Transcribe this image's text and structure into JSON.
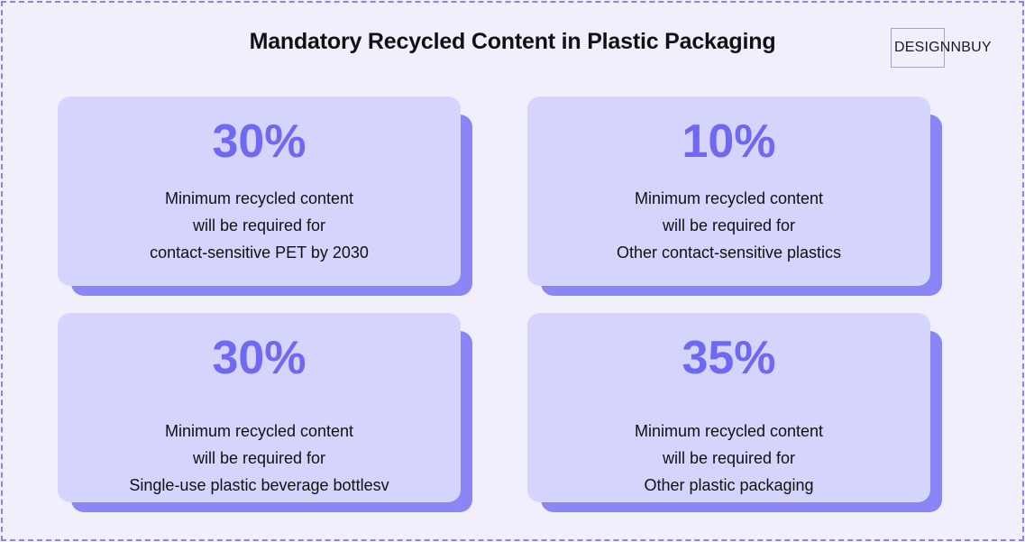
{
  "title": "Mandatory Recycled Content in Plastic Packaging",
  "logo": {
    "text": "DESIGNNBUY"
  },
  "cards": [
    {
      "value": "30%",
      "lines": [
        "Minimum recycled content",
        "will be required for",
        "contact-sensitive PET by 2030"
      ]
    },
    {
      "value": "10%",
      "lines": [
        "Minimum recycled content",
        "will be required for",
        "Other contact-sensitive plastics"
      ]
    },
    {
      "value": "30%",
      "lines": [
        "Minimum recycled content",
        "will be required for",
        "Single-use plastic beverage bottlesv"
      ]
    },
    {
      "value": "35%",
      "lines": [
        "Minimum recycled content",
        "will be required for",
        "Other plastic packaging"
      ]
    }
  ],
  "colors": {
    "background": "#f0effb",
    "card": "#d5d4fc",
    "card_shadow": "#8a86f8",
    "accent": "#6d69f2",
    "border": "#8b84e8"
  }
}
